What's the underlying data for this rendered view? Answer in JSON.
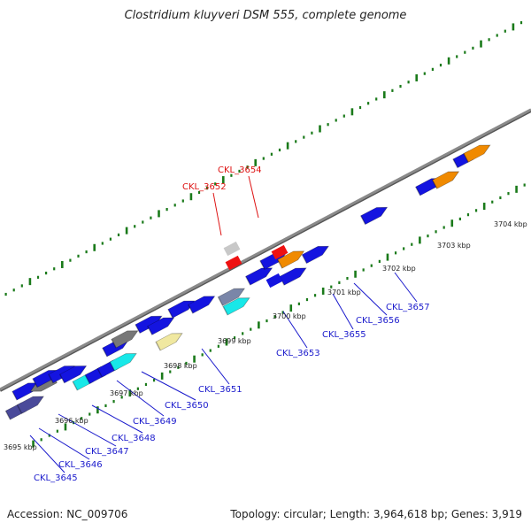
{
  "title": "Clostridium kluyveri DSM 555, complete genome",
  "footer": {
    "accession": "Accession: NC_009706",
    "summary": "Topology: circular; Length: 3,964,618 bp; Genes: 3,919"
  },
  "colors": {
    "backbone": "#8a8a8a",
    "tick": "#1a7a1a",
    "label_default": "#1a1acc",
    "label_highlight": "#dd1111",
    "blue": "#1414e0",
    "cyan": "#18e8e8",
    "orange": "#f08a00",
    "khaki": "#f0e8a0",
    "gray": "#777777",
    "lightgray": "#c8c8c8",
    "red": "#ee1111",
    "slate": "#7a86a8",
    "navy": "#4a4a9a"
  },
  "kbp_labels": [
    "3695 kbp",
    "3696 kbp",
    "3697 kbp",
    "3698 kbp",
    "3699 kbp",
    "3700 kbp",
    "3701 kbp",
    "3702 kbp",
    "3703 kbp",
    "3704 kbp"
  ],
  "gene_labels": [
    {
      "name": "CKL_3645",
      "highlight": false
    },
    {
      "name": "CKL_3646",
      "highlight": false
    },
    {
      "name": "CKL_3647",
      "highlight": false
    },
    {
      "name": "CKL_3648",
      "highlight": false
    },
    {
      "name": "CKL_3649",
      "highlight": false
    },
    {
      "name": "CKL_3650",
      "highlight": false
    },
    {
      "name": "CKL_3651",
      "highlight": false
    },
    {
      "name": "CKL_3652",
      "highlight": true
    },
    {
      "name": "CKL_3653",
      "highlight": false
    },
    {
      "name": "CKL_3654",
      "highlight": true
    },
    {
      "name": "CKL_3655",
      "highlight": false
    },
    {
      "name": "CKL_3656",
      "highlight": false
    },
    {
      "name": "CKL_3657",
      "highlight": false
    }
  ]
}
